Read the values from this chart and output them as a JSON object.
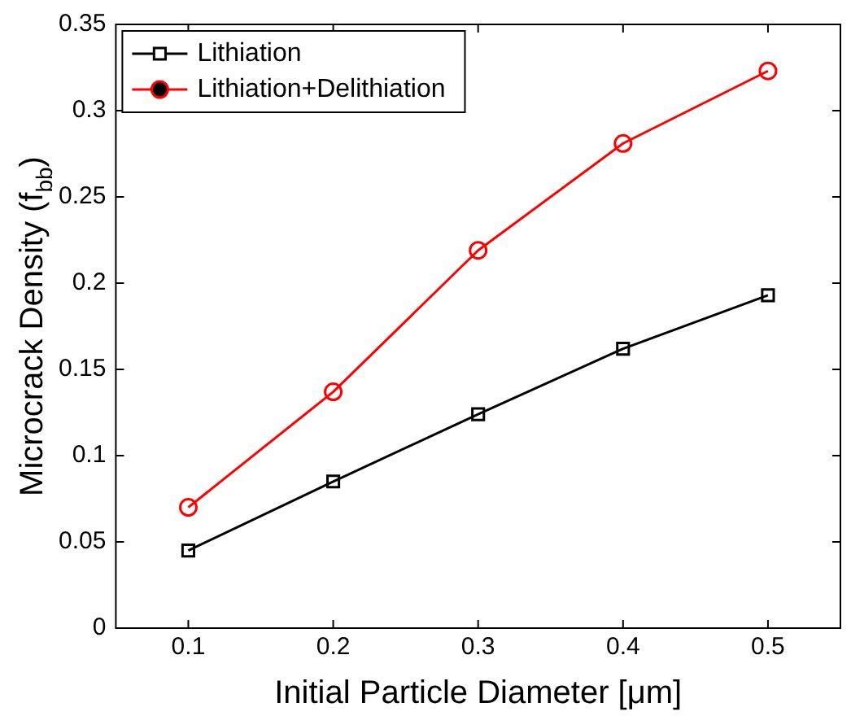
{
  "chart_data": {
    "type": "line",
    "xlabel": "Initial Particle Diameter [μm]",
    "ylabel": "Microcrack Density (f$_{bb}$)",
    "x": [
      0.1,
      0.2,
      0.3,
      0.4,
      0.5
    ],
    "series": [
      {
        "name": "Lithiation",
        "color": "#000000",
        "marker": "square",
        "values": [
          0.045,
          0.085,
          0.124,
          0.162,
          0.193
        ]
      },
      {
        "name": "Lithiation+Delithiation",
        "color": "#ff0000",
        "marker": "circle",
        "values": [
          0.07,
          0.137,
          0.219,
          0.281,
          0.323
        ]
      }
    ],
    "xlim": [
      0.05,
      0.55
    ],
    "xticks": [
      0.1,
      0.2,
      0.3,
      0.4,
      0.5
    ],
    "ylim": [
      0,
      0.35
    ],
    "yticks": [
      0,
      0.05,
      0.1,
      0.15,
      0.2,
      0.25,
      0.3,
      0.35
    ],
    "grid": false,
    "legend": "top left",
    "line_style": "solid"
  }
}
